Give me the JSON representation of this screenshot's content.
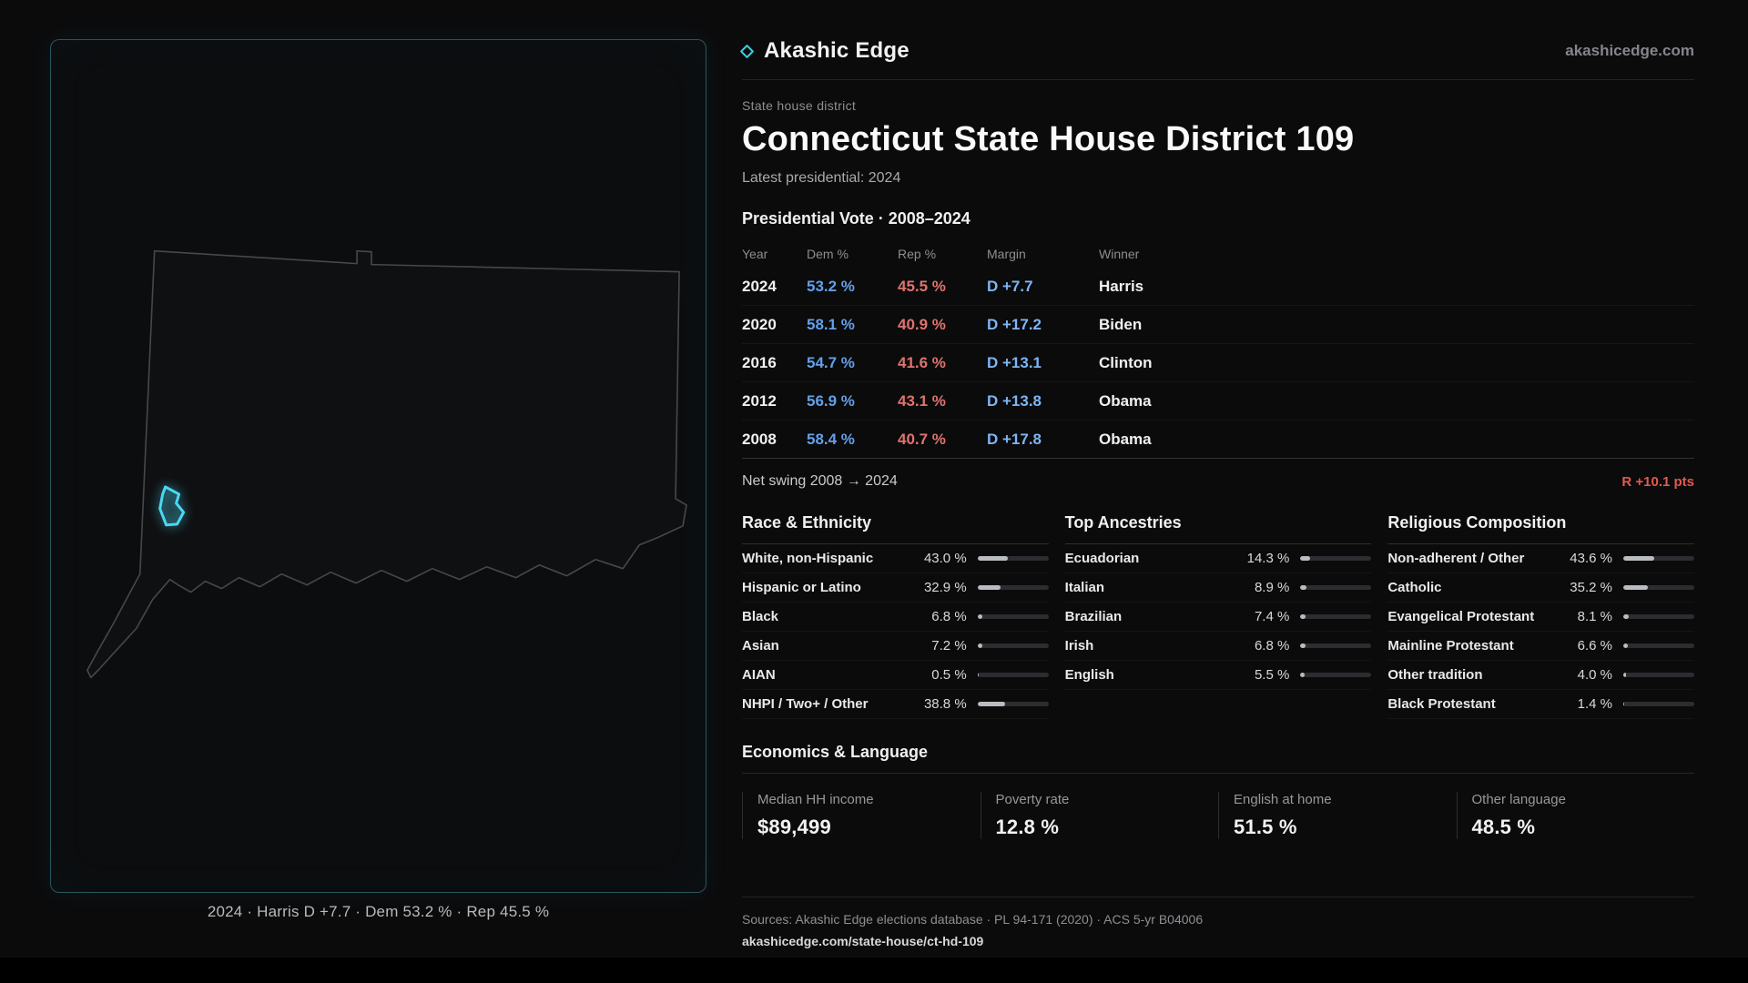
{
  "brand": {
    "name": "Akashic Edge",
    "domain": "akashicedge.com"
  },
  "header": {
    "eyebrow": "State house district",
    "title": "Connecticut State House District 109",
    "subtitle": "Latest presidential: 2024"
  },
  "map": {
    "caption": "2024 · Harris D +7.7 · Dem 53.2 % · Rep 45.5 %"
  },
  "presidential": {
    "heading": "Presidential Vote · 2008–2024",
    "columns": [
      "Year",
      "Dem %",
      "Rep %",
      "Margin",
      "Winner"
    ],
    "rows": [
      {
        "year": "2024",
        "dem": "53.2 %",
        "rep": "45.5 %",
        "margin": "D +7.7",
        "winner": "Harris"
      },
      {
        "year": "2020",
        "dem": "58.1 %",
        "rep": "40.9 %",
        "margin": "D +17.2",
        "winner": "Biden"
      },
      {
        "year": "2016",
        "dem": "54.7 %",
        "rep": "41.6 %",
        "margin": "D +13.1",
        "winner": "Clinton"
      },
      {
        "year": "2012",
        "dem": "56.9 %",
        "rep": "43.1 %",
        "margin": "D +13.8",
        "winner": "Obama"
      },
      {
        "year": "2008",
        "dem": "58.4 %",
        "rep": "40.7 %",
        "margin": "D +17.8",
        "winner": "Obama"
      }
    ],
    "net_swing_label": "Net swing 2008 → 2024",
    "net_swing_value": "R +10.1 pts"
  },
  "demographics": {
    "race": {
      "title": "Race & Ethnicity",
      "rows": [
        {
          "label": "White, non-Hispanic",
          "value": "43.0 %",
          "pct": 43.0
        },
        {
          "label": "Hispanic or Latino",
          "value": "32.9 %",
          "pct": 32.9
        },
        {
          "label": "Black",
          "value": "6.8 %",
          "pct": 6.8
        },
        {
          "label": "Asian",
          "value": "7.2 %",
          "pct": 7.2
        },
        {
          "label": "AIAN",
          "value": "0.5 %",
          "pct": 0.5
        },
        {
          "label": "NHPI / Two+ / Other",
          "value": "38.8 %",
          "pct": 38.8
        }
      ]
    },
    "ancestries": {
      "title": "Top Ancestries",
      "rows": [
        {
          "label": "Ecuadorian",
          "value": "14.3 %",
          "pct": 14.3
        },
        {
          "label": "Italian",
          "value": "8.9 %",
          "pct": 8.9
        },
        {
          "label": "Brazilian",
          "value": "7.4 %",
          "pct": 7.4
        },
        {
          "label": "Irish",
          "value": "6.8 %",
          "pct": 6.8
        },
        {
          "label": "English",
          "value": "5.5 %",
          "pct": 5.5
        }
      ]
    },
    "religion": {
      "title": "Religious Composition",
      "rows": [
        {
          "label": "Non-adherent / Other",
          "value": "43.6 %",
          "pct": 43.6
        },
        {
          "label": "Catholic",
          "value": "35.2 %",
          "pct": 35.2
        },
        {
          "label": "Evangelical Protestant",
          "value": "8.1 %",
          "pct": 8.1
        },
        {
          "label": "Mainline Protestant",
          "value": "6.6 %",
          "pct": 6.6
        },
        {
          "label": "Other tradition",
          "value": "4.0 %",
          "pct": 4.0
        },
        {
          "label": "Black Protestant",
          "value": "1.4 %",
          "pct": 1.4
        }
      ]
    }
  },
  "economics": {
    "heading": "Economics & Language",
    "stats": [
      {
        "label": "Median HH income",
        "value": "$89,499"
      },
      {
        "label": "Poverty rate",
        "value": "12.8 %"
      },
      {
        "label": "English at home",
        "value": "51.5 %"
      },
      {
        "label": "Other language",
        "value": "48.5 %"
      }
    ]
  },
  "footer": {
    "sources": "Sources: Akashic Edge elections database · PL 94-171 (2020) · ACS 5-yr B04006",
    "permalink": "akashicedge.com/state-house/ct-hd-109"
  },
  "colors": {
    "accent": "#3ecfe3",
    "dem": "#64a0e8",
    "rep": "#e0736e",
    "margin": "#7eb5f4",
    "swing": "#e25a52"
  }
}
